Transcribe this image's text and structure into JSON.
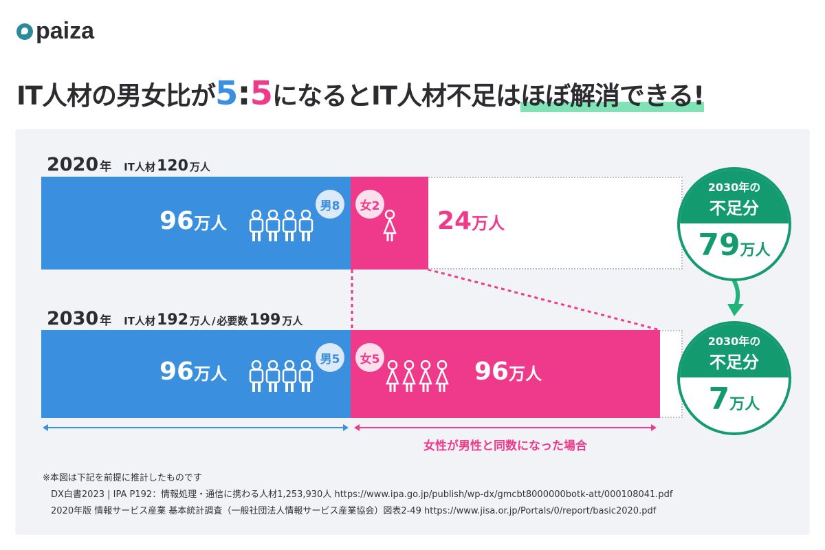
{
  "brand": {
    "logo_text": "paiza"
  },
  "headline": {
    "part1": "IT人材の男女比が",
    "ratio_left": "5",
    "colon": ":",
    "ratio_right": "5",
    "part2": "になるとIT人材不足は",
    "highlight": "ほぼ解消できる!"
  },
  "colors": {
    "male": "#3a8fdf",
    "female": "#ef3a8b",
    "shortage": "#139a6e",
    "highlight": "#7fe3b5"
  },
  "chart_data": {
    "type": "bar",
    "orientation": "horizontal",
    "stacked": true,
    "unit": "万人",
    "categories": [
      "2020年",
      "2030年"
    ],
    "series": [
      {
        "name": "男",
        "values": [
          96,
          96
        ]
      },
      {
        "name": "女",
        "values": [
          24,
          96
        ]
      }
    ],
    "required": 199,
    "rows": [
      {
        "year": "2020",
        "nen": "年",
        "label1": "IT人材",
        "num1": "120",
        "unit1": "万人",
        "sep": "",
        "label2": "",
        "num2": "",
        "unit2": "",
        "male_value": "96",
        "female_value": "24",
        "unit": "万人",
        "male_badge": "男8",
        "female_badge": "女2",
        "male_icons": 4,
        "female_icons": 1,
        "shortage_top1": "2030年の",
        "shortage_top2": "不足分",
        "shortage_value": "79",
        "shortage_unit": "万人"
      },
      {
        "year": "2030",
        "nen": "年",
        "label1": "IT人材",
        "num1": "192",
        "unit1": "万人",
        "sep": " / ",
        "label2": "必要数",
        "num2": "199",
        "unit2": "万人",
        "male_value": "96",
        "female_value": "96",
        "unit": "万人",
        "male_badge": "男5",
        "female_badge": "女5",
        "male_icons": 4,
        "female_icons": 4,
        "shortage_top1": "2030年の",
        "shortage_top2": "不足分",
        "shortage_value": "7",
        "shortage_unit": "万人"
      }
    ],
    "annotation": "女性が男性と同数になった場合"
  },
  "notes": [
    "※本図は下記を前提に推計したものです",
    "DX白書2023 | IPA  P192：情報処理・通信に携わる人材1,253,930人  https://www.ipa.go.jp/publish/wp-dx/gmcbt8000000botk-att/000108041.pdf",
    "2020年版 情報サービス産業 基本統計調査（一般社団法人情報サービス産業協会）図表2-49   https://www.jisa.or.jp/Portals/0/report/basic2020.pdf"
  ]
}
